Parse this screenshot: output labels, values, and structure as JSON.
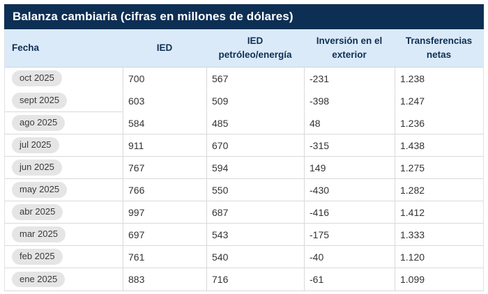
{
  "title": "Balanza cambiaria (cifras en millones de dólares)",
  "colors": {
    "title_bar_bg": "#0e2f54",
    "header_bg": "#dbeaf8",
    "header_text": "#0e2f54",
    "border": "#d9d9d9",
    "pill_bg": "#e5e5e6",
    "data_text": "#333333"
  },
  "table": {
    "columns": [
      {
        "key": "fecha",
        "label": "Fecha"
      },
      {
        "key": "ied",
        "label": "IED"
      },
      {
        "key": "ied_petroleo",
        "label": "IED\npetróleo/energía"
      },
      {
        "key": "inversion",
        "label": "Inversión en el\nexterior"
      },
      {
        "key": "transferencias",
        "label": "Transferencias\nnetas"
      }
    ],
    "rows": [
      {
        "fecha": "oct 2025",
        "ied": "700",
        "ied_petroleo": "567",
        "inversion": "-231",
        "transferencias": "1.238"
      },
      {
        "fecha": "sept 2025",
        "ied": "603",
        "ied_petroleo": "509",
        "inversion": "-398",
        "transferencias": "1.247"
      },
      {
        "fecha": "ago 2025",
        "ied": "584",
        "ied_petroleo": "485",
        "inversion": "48",
        "transferencias": "1.236"
      },
      {
        "fecha": "jul 2025",
        "ied": "911",
        "ied_petroleo": "670",
        "inversion": "-315",
        "transferencias": "1.438"
      },
      {
        "fecha": "jun 2025",
        "ied": "767",
        "ied_petroleo": "594",
        "inversion": "149",
        "transferencias": "1.275"
      },
      {
        "fecha": "may 2025",
        "ied": "766",
        "ied_petroleo": "550",
        "inversion": "-430",
        "transferencias": "1.282"
      },
      {
        "fecha": "abr 2025",
        "ied": "997",
        "ied_petroleo": "687",
        "inversion": "-416",
        "transferencias": "1.412"
      },
      {
        "fecha": "mar 2025",
        "ied": "697",
        "ied_petroleo": "543",
        "inversion": "-175",
        "transferencias": "1.333"
      },
      {
        "fecha": "feb 2025",
        "ied": "761",
        "ied_petroleo": "540",
        "inversion": "-40",
        "transferencias": "1.120"
      },
      {
        "fecha": "ene 2025",
        "ied": "883",
        "ied_petroleo": "716",
        "inversion": "-61",
        "transferencias": "1.099"
      }
    ]
  }
}
